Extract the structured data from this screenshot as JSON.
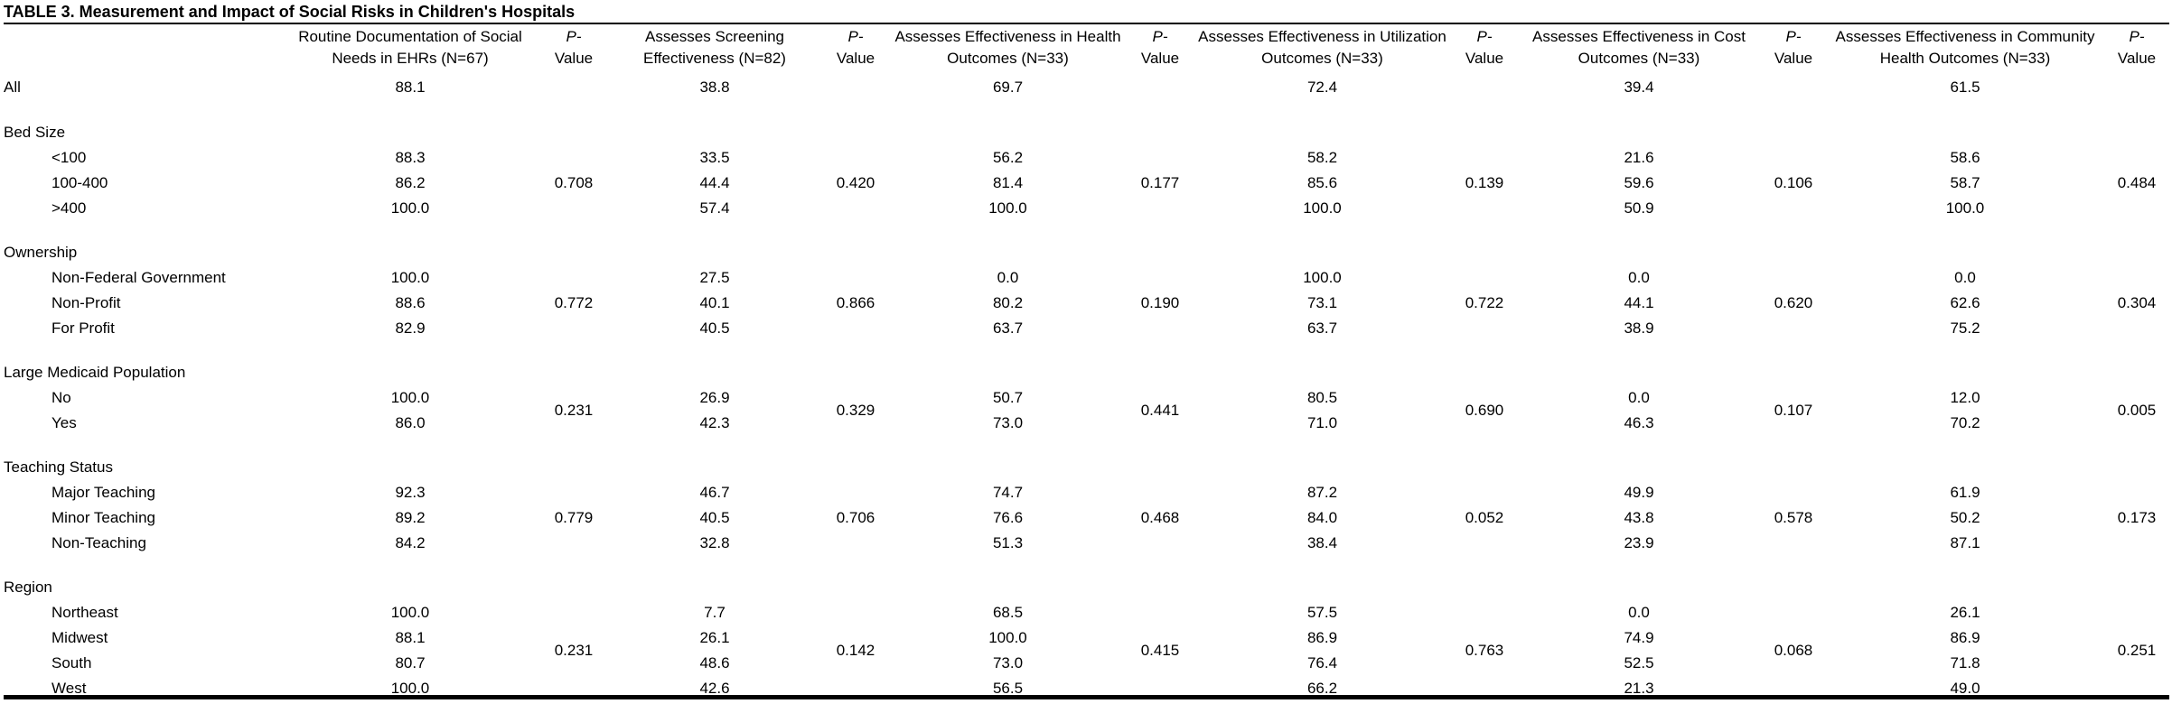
{
  "title": "TABLE 3. Measurement and Impact of Social Risks in Children's Hospitals",
  "header": {
    "stub": "",
    "pvalue_italic": "P-",
    "pvalue_rest": "Value",
    "measures": [
      "Routine Documentation of Social Needs in EHRs (N=67)",
      "Assesses Screening Effectiveness (N=82)",
      "Assesses Effectiveness in Health Outcomes (N=33)",
      "Assesses Effectiveness in Utilization Outcomes (N=33)",
      "Assesses Effectiveness in Cost Outcomes (N=33)",
      "Assesses Effectiveness in Community Health Outcomes (N=33)"
    ]
  },
  "all_row": {
    "label": "All",
    "values": [
      "88.1",
      "38.8",
      "69.7",
      "72.4",
      "39.4",
      "61.5"
    ]
  },
  "groups": [
    {
      "label": "Bed Size",
      "pvalues": [
        "0.708",
        "0.420",
        "0.177",
        "0.139",
        "0.106",
        "0.484"
      ],
      "rows": [
        {
          "label": "<100",
          "values": [
            "88.3",
            "33.5",
            "56.2",
            "58.2",
            "21.6",
            "58.6"
          ]
        },
        {
          "label": "100-400",
          "values": [
            "86.2",
            "44.4",
            "81.4",
            "85.6",
            "59.6",
            "58.7"
          ]
        },
        {
          "label": ">400",
          "values": [
            "100.0",
            "57.4",
            "100.0",
            "100.0",
            "50.9",
            "100.0"
          ]
        }
      ]
    },
    {
      "label": "Ownership",
      "pvalues": [
        "0.772",
        "0.866",
        "0.190",
        "0.722",
        "0.620",
        "0.304"
      ],
      "rows": [
        {
          "label": "Non-Federal Government",
          "values": [
            "100.0",
            "27.5",
            "0.0",
            "100.0",
            "0.0",
            "0.0"
          ]
        },
        {
          "label": "Non-Profit",
          "values": [
            "88.6",
            "40.1",
            "80.2",
            "73.1",
            "44.1",
            "62.6"
          ]
        },
        {
          "label": "For Profit",
          "values": [
            "82.9",
            "40.5",
            "63.7",
            "63.7",
            "38.9",
            "75.2"
          ]
        }
      ]
    },
    {
      "label": "Large Medicaid Population",
      "pvalues": [
        "0.231",
        "0.329",
        "0.441",
        "0.690",
        "0.107",
        "0.005"
      ],
      "rows": [
        {
          "label": "No",
          "values": [
            "100.0",
            "26.9",
            "50.7",
            "80.5",
            "0.0",
            "12.0"
          ]
        },
        {
          "label": "Yes",
          "values": [
            "86.0",
            "42.3",
            "73.0",
            "71.0",
            "46.3",
            "70.2"
          ]
        }
      ]
    },
    {
      "label": "Teaching Status",
      "pvalues": [
        "0.779",
        "0.706",
        "0.468",
        "0.052",
        "0.578",
        "0.173"
      ],
      "rows": [
        {
          "label": "Major Teaching",
          "values": [
            "92.3",
            "46.7",
            "74.7",
            "87.2",
            "49.9",
            "61.9"
          ]
        },
        {
          "label": "Minor Teaching",
          "values": [
            "89.2",
            "40.5",
            "76.6",
            "84.0",
            "43.8",
            "50.2"
          ]
        },
        {
          "label": "Non-Teaching",
          "values": [
            "84.2",
            "32.8",
            "51.3",
            "38.4",
            "23.9",
            "87.1"
          ]
        }
      ]
    },
    {
      "label": "Region",
      "pvalues": [
        "0.231",
        "0.142",
        "0.415",
        "0.763",
        "0.068",
        "0.251"
      ],
      "rows": [
        {
          "label": "Northeast",
          "values": [
            "100.0",
            "7.7",
            "68.5",
            "57.5",
            "0.0",
            "26.1"
          ]
        },
        {
          "label": "Midwest",
          "values": [
            "88.1",
            "26.1",
            "100.0",
            "86.9",
            "74.9",
            "86.9"
          ]
        },
        {
          "label": "South",
          "values": [
            "80.7",
            "48.6",
            "73.0",
            "76.4",
            "52.5",
            "71.8"
          ]
        },
        {
          "label": "West",
          "values": [
            "100.0",
            "42.6",
            "56.5",
            "66.2",
            "21.3",
            "49.0"
          ]
        }
      ]
    }
  ]
}
